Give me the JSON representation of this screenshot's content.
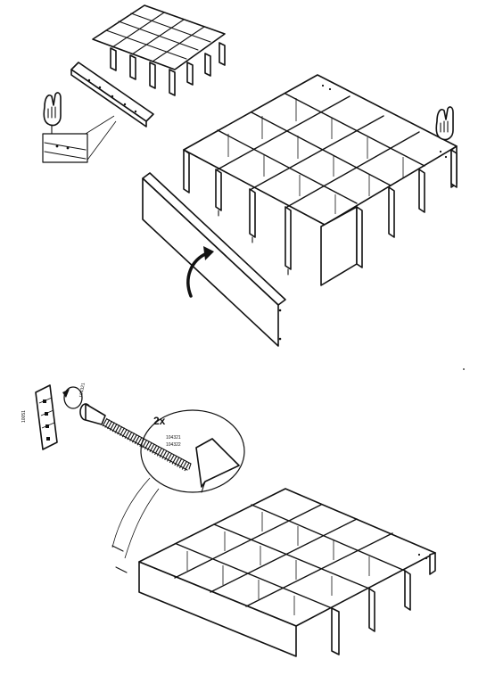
{
  "manual": {
    "step_upper": {
      "grid_cells": "4x4",
      "icons": [
        "hand-pointing-icon",
        "arrow-curved-icon"
      ]
    },
    "step_lower": {
      "quantity_label": "2x",
      "part_label_a": "104321",
      "part_label_b": "104322",
      "tool_label": "10051",
      "icons": [
        "dowel-screw-icon",
        "rotate-arrow-icon",
        "hex-key-icon"
      ]
    }
  }
}
